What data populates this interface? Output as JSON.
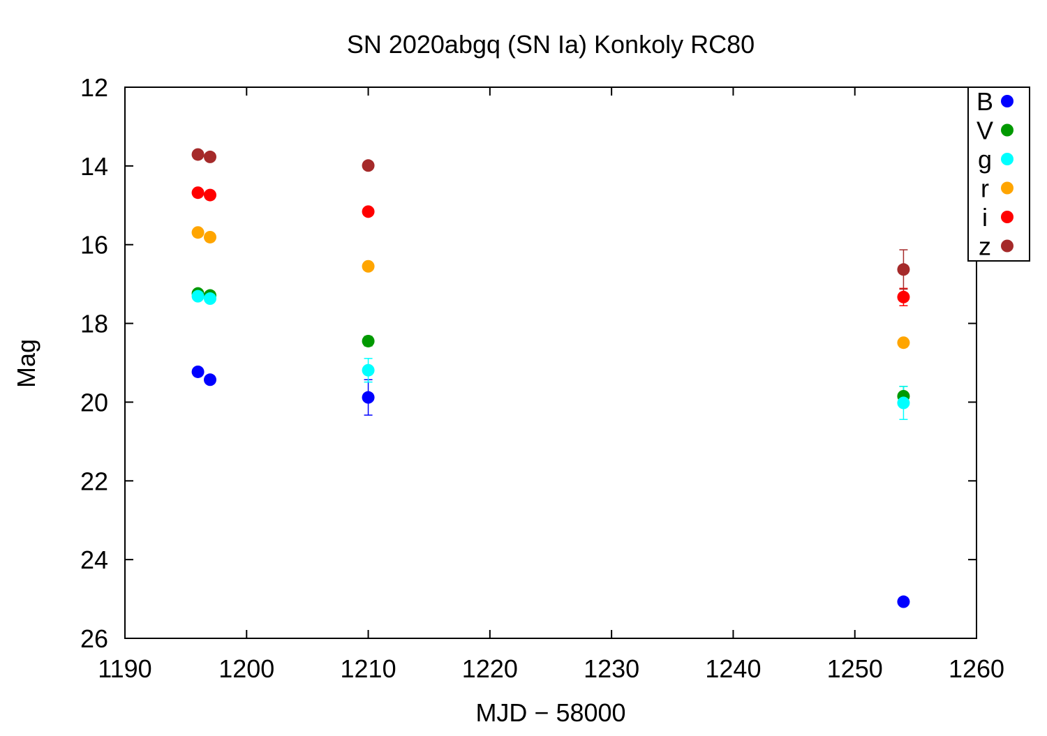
{
  "chart_data": {
    "type": "scatter",
    "title": "SN 2020abgq (SN Ia) Konkoly RC80",
    "xlabel": "MJD − 58000",
    "ylabel": "Mag",
    "xlim": [
      1190,
      1260
    ],
    "ylim": [
      12,
      26
    ],
    "y_inverted": true,
    "x_ticks": [
      1190,
      1200,
      1210,
      1220,
      1230,
      1240,
      1250,
      1260
    ],
    "y_ticks": [
      12,
      14,
      16,
      18,
      20,
      22,
      24,
      26
    ],
    "grid": false,
    "legend_position": "top-right",
    "series": [
      {
        "name": "B",
        "color": "#0000ff",
        "points": [
          {
            "x": 1196.0,
            "y": 19.23,
            "err": 0.08
          },
          {
            "x": 1197.0,
            "y": 19.43,
            "err": 0.07
          },
          {
            "x": 1210.0,
            "y": 19.88,
            "err": 0.45
          },
          {
            "x": 1254.0,
            "y": 25.07,
            "err": 0.0
          }
        ]
      },
      {
        "name": "V",
        "color": "#009900",
        "points": [
          {
            "x": 1196.0,
            "y": 17.24,
            "err": 0.05
          },
          {
            "x": 1197.0,
            "y": 17.29,
            "err": 0.05
          },
          {
            "x": 1210.0,
            "y": 18.45,
            "err": 0.12
          },
          {
            "x": 1254.0,
            "y": 19.85,
            "err": 0.25
          }
        ]
      },
      {
        "name": "g",
        "color": "#00ffff",
        "points": [
          {
            "x": 1196.0,
            "y": 17.31,
            "err": 0.05
          },
          {
            "x": 1197.0,
            "y": 17.37,
            "err": 0.05
          },
          {
            "x": 1210.0,
            "y": 19.19,
            "err": 0.3
          },
          {
            "x": 1254.0,
            "y": 20.02,
            "err": 0.42
          }
        ]
      },
      {
        "name": "r",
        "color": "#ffa500",
        "points": [
          {
            "x": 1196.0,
            "y": 15.69,
            "err": 0.04
          },
          {
            "x": 1197.0,
            "y": 15.81,
            "err": 0.04
          },
          {
            "x": 1210.0,
            "y": 16.55,
            "err": 0.06
          },
          {
            "x": 1254.0,
            "y": 18.49,
            "err": 0.1
          }
        ]
      },
      {
        "name": "i",
        "color": "#ff0000",
        "points": [
          {
            "x": 1196.0,
            "y": 14.68,
            "err": 0.04
          },
          {
            "x": 1197.0,
            "y": 14.74,
            "err": 0.04
          },
          {
            "x": 1210.0,
            "y": 15.16,
            "err": 0.05
          },
          {
            "x": 1254.0,
            "y": 17.33,
            "err": 0.22
          }
        ]
      },
      {
        "name": "z",
        "color": "#a52a2a",
        "points": [
          {
            "x": 1196.0,
            "y": 13.71,
            "err": 0.04
          },
          {
            "x": 1197.0,
            "y": 13.77,
            "err": 0.04
          },
          {
            "x": 1210.0,
            "y": 13.99,
            "err": 0.05
          },
          {
            "x": 1254.0,
            "y": 16.63,
            "err": 0.5
          }
        ]
      }
    ]
  }
}
